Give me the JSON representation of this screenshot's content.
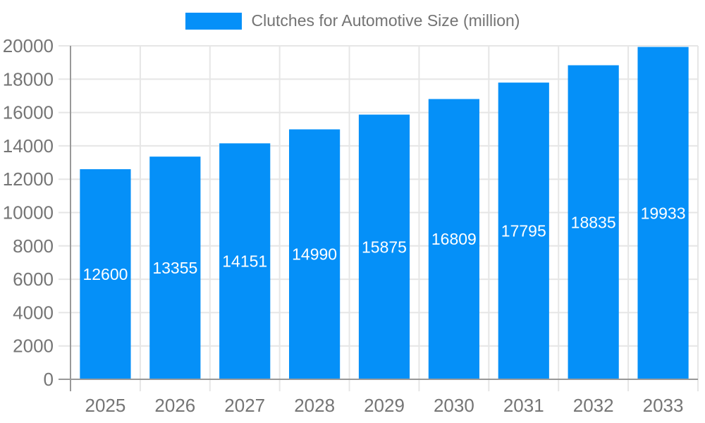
{
  "legend": {
    "label": "Clutches for Automotive Size (million)",
    "swatch_color": "#0590f8"
  },
  "chart_data": {
    "type": "bar",
    "title": "Clutches for Automotive Size (million)",
    "series_name": "Clutches for Automotive Size (million)",
    "categories": [
      "2025",
      "2026",
      "2027",
      "2028",
      "2029",
      "2030",
      "2031",
      "2032",
      "2033"
    ],
    "values": [
      12600,
      13355,
      14151,
      14990,
      15875,
      16809,
      17795,
      18835,
      19933
    ],
    "value_labels": [
      "12600",
      "13355",
      "14151",
      "14990",
      "15875",
      "16809",
      "17795",
      "18835",
      "19933"
    ],
    "xlabel": "",
    "ylabel": "",
    "ylim": [
      0,
      20000
    ],
    "ytick_step": 2000,
    "ytick_labels": [
      "0",
      "2000",
      "4000",
      "6000",
      "8000",
      "10000",
      "12000",
      "14000",
      "16000",
      "18000",
      "20000"
    ],
    "grid": true,
    "legend_position": "top",
    "bar_color": "#0590f8",
    "value_label_color": "#ffffff"
  },
  "style": {
    "axis_line_color": "#999999",
    "grid_line_color": "#e6e6e6",
    "tick_label_color": "#757575",
    "title_color": "#737373",
    "background_color": "#ffffff"
  }
}
